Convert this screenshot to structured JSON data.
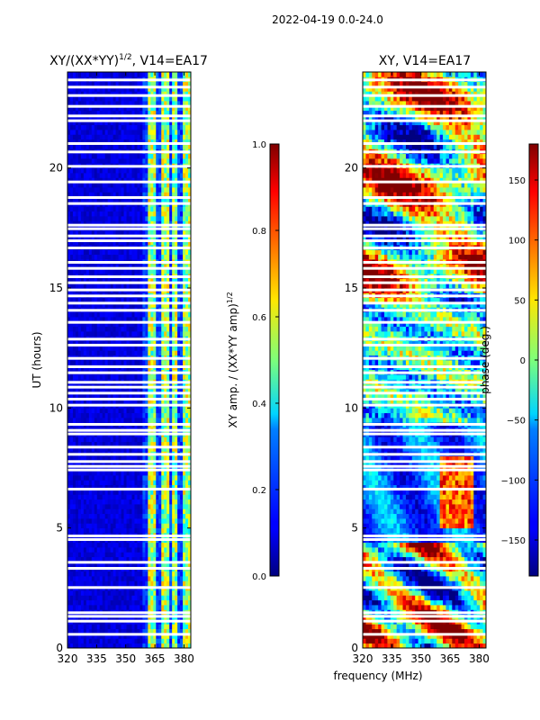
{
  "suptitle": "2022-04-19 0.0-24.0",
  "chart_data": [
    {
      "type": "heatmap",
      "title_main": "XY/(XX*YY)",
      "title_sup": "1/2",
      "title_rest": ", V14=EA17",
      "ylabel": "UT (hours)",
      "xticks": [
        320,
        335,
        350,
        365,
        380
      ],
      "yticks": [
        0,
        5,
        10,
        15,
        20
      ],
      "xlim": [
        320,
        383.5
      ],
      "ylim": [
        0,
        24
      ],
      "colorbar": {
        "label_main": "XY amp. / (XX*YY amp)",
        "label_sup": "1/2",
        "ticks": [
          "0.0",
          "0.2",
          "0.4",
          "0.6",
          "0.8",
          "1.0"
        ],
        "range": [
          0,
          1
        ]
      },
      "colormap": "jet",
      "description_bands_mhz": [
        [
          362,
          366
        ],
        [
          369,
          372
        ],
        [
          374,
          377
        ],
        [
          379,
          383
        ]
      ]
    },
    {
      "type": "heatmap",
      "title": "XY, V14=EA17",
      "xlabel": "frequency (MHz)",
      "xticks": [
        320,
        335,
        350,
        365,
        380
      ],
      "yticks": [
        0,
        5,
        10,
        15,
        20
      ],
      "xlim": [
        320,
        383.5
      ],
      "ylim": [
        0,
        24
      ],
      "colorbar": {
        "label": "phase (deg.)",
        "ticks": [
          "150",
          "100",
          "50",
          "0",
          "−50",
          "−100",
          "−150"
        ],
        "range": [
          -180,
          180
        ]
      },
      "colormap": "jet"
    }
  ],
  "flagged_hours": [
    0.55,
    1.1,
    1.3,
    1.45,
    2.5,
    3.3,
    3.55,
    4.5,
    4.65,
    6.6,
    7.4,
    7.55,
    7.75,
    8.05,
    8.35,
    8.9,
    9.05,
    9.3,
    10.1,
    10.35,
    10.6,
    10.85,
    11.05,
    11.45,
    11.7,
    12.05,
    12.6,
    12.85,
    13.55,
    14.05,
    14.35,
    14.65,
    14.9,
    15.2,
    15.45,
    15.8,
    16.05,
    16.65,
    16.95,
    17.15,
    17.45,
    17.6,
    18.5,
    18.75,
    19.4,
    20.05,
    20.65,
    21.0,
    21.95,
    22.15,
    22.55,
    23.0,
    23.35,
    23.65
  ]
}
